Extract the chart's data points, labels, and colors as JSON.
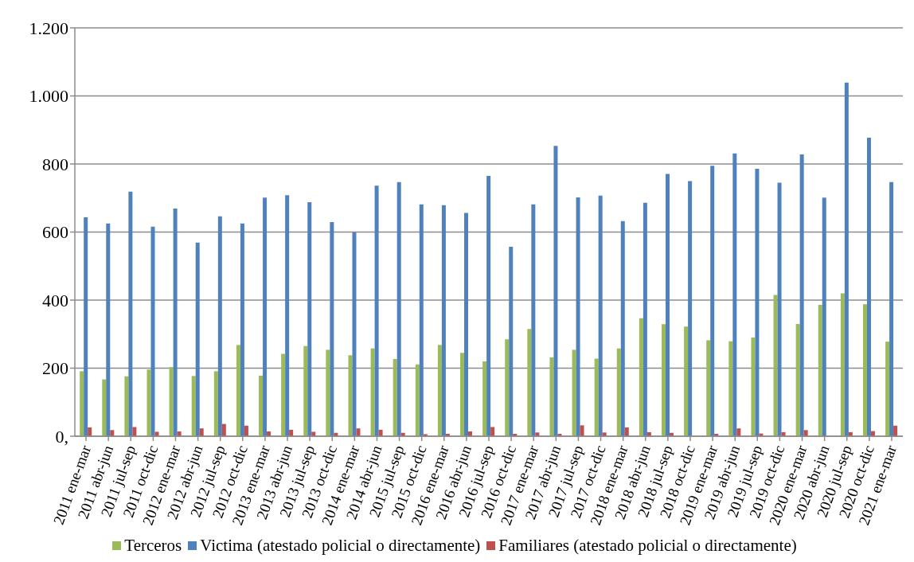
{
  "chart_data": {
    "type": "bar",
    "categories": [
      "2011 ene-mar",
      "2011 abr-jun",
      "2011 jul-sep",
      "2011 oct-dic",
      "2012 ene-mar",
      "2012 abr-jun",
      "2012 jul-sep",
      "2012 oct-dic",
      "2013 ene-mar",
      "2013 abr-jun",
      "2013 jul-sep",
      "2013 oct-dic",
      "2014 ene-mar",
      "2014 abr-jun",
      "2015 jul-sep",
      "2015 oct-dic",
      "2016 ene-mar",
      "2016 abr-jun",
      "2016 jul-sep",
      "2016 oct-dic",
      "2017 ene-mar",
      "2017 abr-jun",
      "2017 jul-sep",
      "2017 oct-dic",
      "2018 ene-mar",
      "2018 abr-jun",
      "2018 jul-sep",
      "2018 oct-dic",
      "2019 ene-mar",
      "2019 abr-jun",
      "2019 jul-sep",
      "2019 oct-dic",
      "2020 ene-mar",
      "2020 abr-jun",
      "2020 jul-sep",
      "2020 oct-dic",
      "2021 ene-mar"
    ],
    "series": [
      {
        "name": "Terceros",
        "color": "#9bbb59",
        "values": [
          191,
          167,
          176,
          196,
          203,
          177,
          191,
          268,
          178,
          242,
          265,
          254,
          238,
          258,
          227,
          211,
          268,
          245,
          220,
          285,
          315,
          232,
          254,
          228,
          258,
          347,
          329,
          322,
          282,
          279,
          290,
          415,
          330,
          386,
          420,
          388,
          278
        ]
      },
      {
        "name": "Victima (atestado policial o directamente)",
        "color": "#4f81bd",
        "values": [
          643,
          625,
          719,
          616,
          669,
          569,
          646,
          625,
          701,
          708,
          688,
          629,
          599,
          736,
          747,
          681,
          679,
          656,
          765,
          557,
          681,
          853,
          702,
          707,
          632,
          686,
          771,
          750,
          795,
          831,
          786,
          745,
          828,
          701,
          1039,
          877,
          747
        ]
      },
      {
        "name": "Familiares (atestado policial o directamente)",
        "color": "#c0504d",
        "values": [
          26,
          18,
          27,
          13,
          14,
          23,
          36,
          31,
          14,
          19,
          13,
          10,
          23,
          19,
          10,
          6,
          7,
          14,
          27,
          7,
          11,
          7,
          32,
          11,
          26,
          12,
          10,
          null,
          7,
          23,
          8,
          12,
          18,
          null,
          12,
          15,
          31
        ]
      }
    ],
    "ylim": [
      0,
      1200
    ],
    "yticks": [
      {
        "value": 0,
        "label": "0,"
      },
      200,
      400,
      600,
      800,
      {
        "value": 1000,
        "label": "1.000"
      },
      {
        "value": 1200,
        "label": "1.200"
      }
    ],
    "grid": "y",
    "legend": "bottom"
  }
}
